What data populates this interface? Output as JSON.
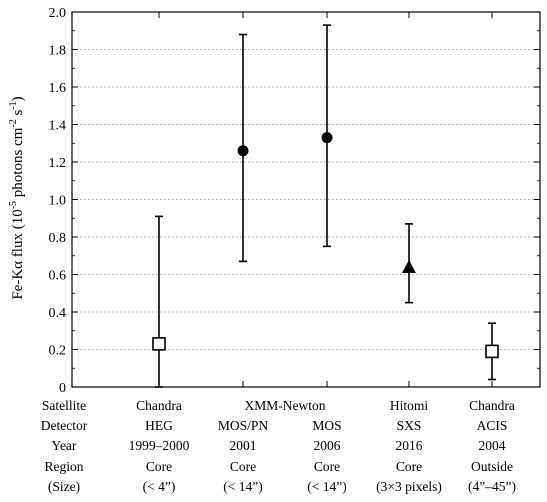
{
  "chart_data": {
    "type": "scatter",
    "ylabel": "Fe-Kα flux (10",
    "ylabel_exp1": "-5",
    "ylabel_mid": " photons cm",
    "ylabel_exp2": "-2",
    "ylabel_mid2": " s",
    "ylabel_exp3": "-1",
    "ylabel_end": ")",
    "ylim": [
      0,
      2.0
    ],
    "yticks": [
      "0",
      "0.2",
      "0.4",
      "0.6",
      "0.8",
      "1.0",
      "1.2",
      "1.4",
      "1.6",
      "1.8",
      "2.0"
    ],
    "grid": "horizontal dotted",
    "row_labels": [
      "Satellite",
      "Detector",
      "Year",
      "Region",
      "(Size)"
    ],
    "group_labels": [
      {
        "text": "Chandra",
        "columns": [
          0
        ]
      },
      {
        "text": "XMM-Newton",
        "columns": [
          1,
          2
        ]
      },
      {
        "text": "Hitomi",
        "columns": [
          3
        ]
      },
      {
        "text": "Chandra",
        "columns": [
          4
        ]
      }
    ],
    "points": [
      {
        "detector": "HEG",
        "year": "1999–2000",
        "region": "Core",
        "size": "(< 4”)",
        "y": 0.23,
        "y_low": 0.0,
        "y_high": 0.91,
        "marker": "open-square"
      },
      {
        "detector": "MOS/PN",
        "year": "2001",
        "region": "Core",
        "size": "(< 14”)",
        "y": 1.26,
        "y_low": 0.67,
        "y_high": 1.88,
        "marker": "filled-circle"
      },
      {
        "detector": "MOS",
        "year": "2006",
        "region": "Core",
        "size": "(< 14”)",
        "y": 1.33,
        "y_low": 0.75,
        "y_high": 1.93,
        "marker": "filled-circle"
      },
      {
        "detector": "SXS",
        "year": "2016",
        "region": "Core",
        "size": "(3×3 pixels)",
        "y": 0.64,
        "y_low": 0.45,
        "y_high": 0.87,
        "marker": "filled-triangle"
      },
      {
        "detector": "ACIS",
        "year": "2004",
        "region": "Outside",
        "size": "(4”–45”)",
        "y": 0.19,
        "y_low": 0.04,
        "y_high": 0.34,
        "marker": "open-square"
      }
    ]
  }
}
